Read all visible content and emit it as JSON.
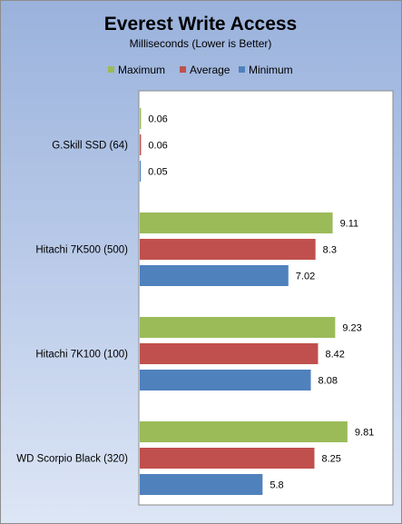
{
  "chart_data": {
    "type": "bar",
    "orientation": "horizontal",
    "title": "Everest Write Access",
    "subtitle": "Milliseconds (Lower is Better)",
    "xlabel": "",
    "ylabel": "",
    "xlim": [
      0,
      12
    ],
    "grid": false,
    "legend_position": "top-center",
    "categories": [
      "G.Skill SSD (64)",
      "Hitachi 7K500 (500)",
      "Hitachi 7K100 (100)",
      "WD Scorpio Black (320)"
    ],
    "series": [
      {
        "name": "Maximum",
        "color": "#9bbb59",
        "values": [
          0.06,
          9.11,
          9.23,
          9.81
        ]
      },
      {
        "name": "Average",
        "color": "#c0504d",
        "values": [
          0.06,
          8.3,
          8.42,
          8.25
        ]
      },
      {
        "name": "Minimum",
        "color": "#4f81bd",
        "values": [
          0.05,
          7.02,
          8.08,
          5.8
        ]
      }
    ],
    "value_labels": [
      [
        "0.06",
        "9.11",
        "9.23",
        "9.81"
      ],
      [
        "0.06",
        "8.3",
        "8.42",
        "8.25"
      ],
      [
        "0.05",
        "7.02",
        "8.08",
        "5.8"
      ]
    ]
  }
}
